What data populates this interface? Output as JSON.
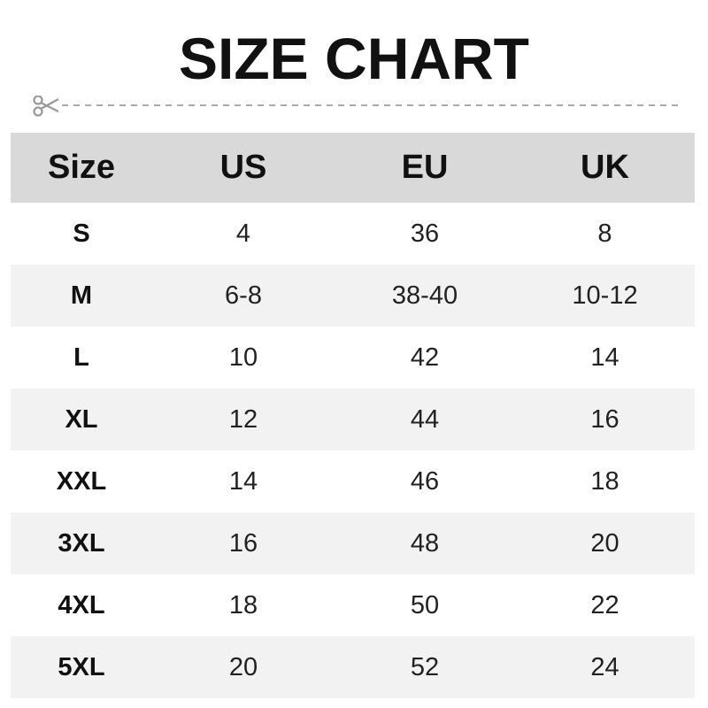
{
  "title": "SIZE CHART",
  "icons": {
    "cut_line": "scissors-icon"
  },
  "colors": {
    "header_bg": "#d9d9d9",
    "stripe_bg": "#f2f2f2",
    "cut_line": "#999999"
  },
  "table": {
    "headers": [
      "Size",
      "US",
      "EU",
      "UK"
    ],
    "rows": [
      [
        "S",
        "4",
        "36",
        "8"
      ],
      [
        "M",
        "6-8",
        "38-40",
        "10-12"
      ],
      [
        "L",
        "10",
        "42",
        "14"
      ],
      [
        "XL",
        "12",
        "44",
        "16"
      ],
      [
        "XXL",
        "14",
        "46",
        "18"
      ],
      [
        "3XL",
        "16",
        "48",
        "20"
      ],
      [
        "4XL",
        "18",
        "50",
        "22"
      ],
      [
        "5XL",
        "20",
        "52",
        "24"
      ]
    ]
  }
}
